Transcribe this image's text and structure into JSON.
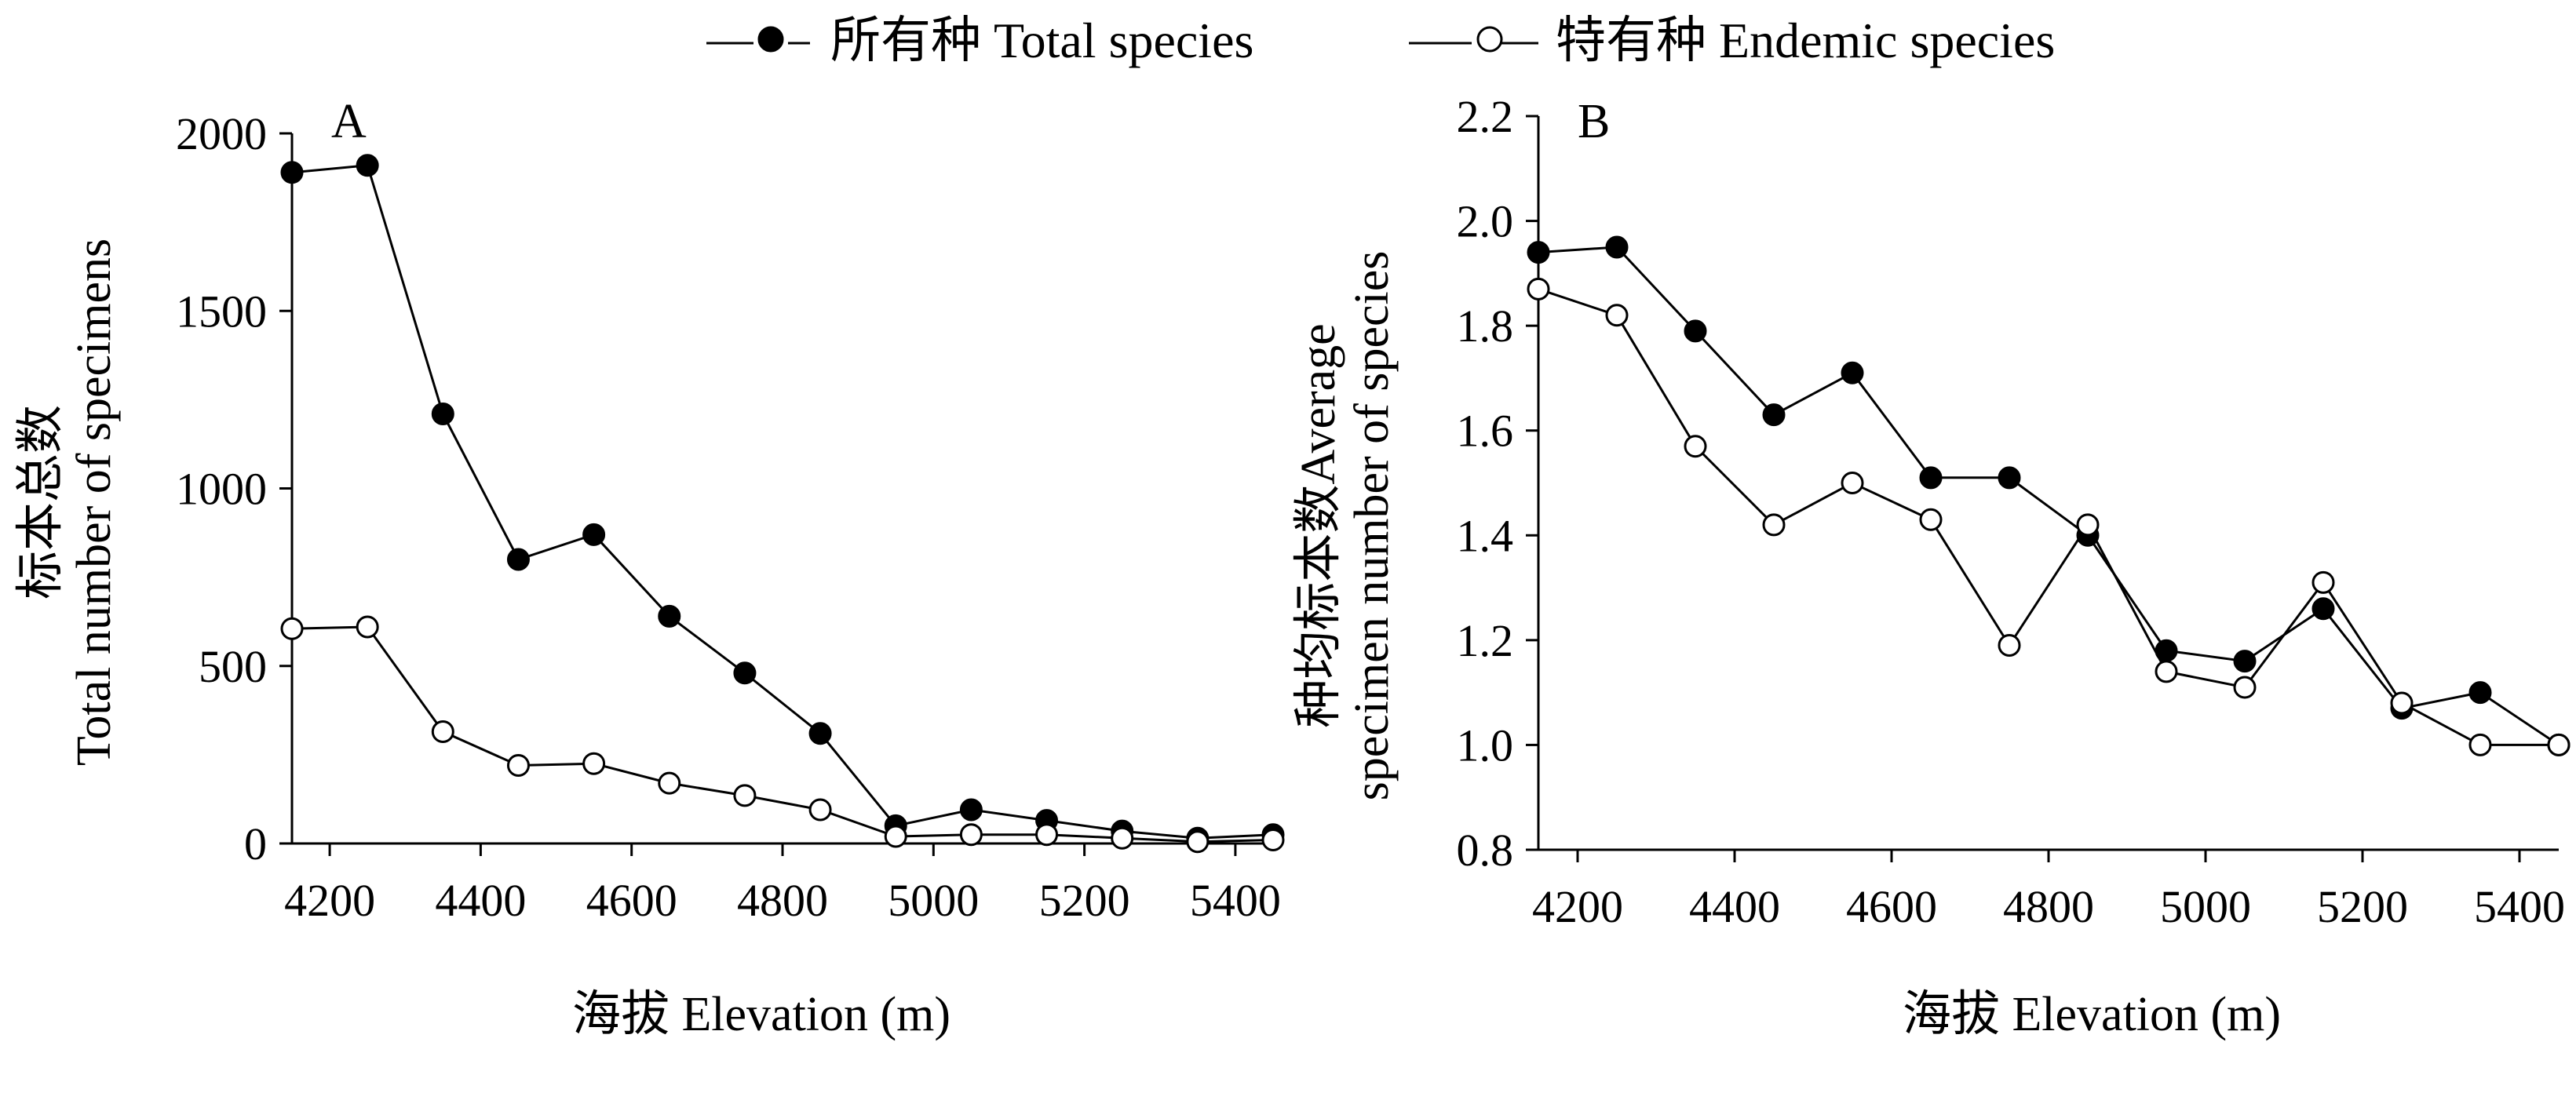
{
  "legend": {
    "total_label": "所有种 Total species",
    "endemic_label": "特有种 Endemic species"
  },
  "chart_data": [
    {
      "type": "line",
      "panel_label": "A",
      "xlabel": "海拔 Elevation (m)",
      "ylabel_line1": "标本总数",
      "ylabel_line2": "Total number of specimens",
      "xlim": [
        4150,
        5450
      ],
      "ylim": [
        0,
        2000
      ],
      "x_ticks": [
        4200,
        4400,
        4600,
        4800,
        5000,
        5200,
        5400
      ],
      "y_ticks": [
        0,
        500,
        1000,
        1500,
        2000
      ],
      "x": [
        4150,
        4250,
        4350,
        4450,
        4550,
        4650,
        4750,
        4850,
        4950,
        5050,
        5150,
        5250,
        5350,
        5450
      ],
      "series": [
        {
          "name": "所有种 Total species",
          "marker": "filled",
          "values": [
            1890,
            1910,
            1210,
            800,
            870,
            640,
            480,
            310,
            50,
            95,
            65,
            35,
            15,
            25
          ]
        },
        {
          "name": "特有种 Endemic species",
          "marker": "open",
          "values": [
            605,
            610,
            315,
            220,
            225,
            170,
            135,
            95,
            20,
            25,
            25,
            15,
            5,
            10
          ]
        }
      ]
    },
    {
      "type": "line",
      "panel_label": "B",
      "xlabel": "海拔 Elevation (m)",
      "ylabel_line1": "种均标本数Average",
      "ylabel_line2": "specimen number of species",
      "xlim": [
        4150,
        5450
      ],
      "ylim": [
        0.8,
        2.2
      ],
      "x_ticks": [
        4200,
        4400,
        4600,
        4800,
        5000,
        5200,
        5400
      ],
      "y_ticks": [
        0.8,
        1.0,
        1.2,
        1.4,
        1.6,
        1.8,
        2.0,
        2.2
      ],
      "x": [
        4150,
        4250,
        4350,
        4450,
        4550,
        4650,
        4750,
        4850,
        4950,
        5050,
        5150,
        5250,
        5350,
        5450
      ],
      "series": [
        {
          "name": "所有种 Total species",
          "marker": "filled",
          "values": [
            1.94,
            1.95,
            1.79,
            1.63,
            1.71,
            1.51,
            1.51,
            1.4,
            1.18,
            1.16,
            1.26,
            1.07,
            1.1,
            1.0
          ]
        },
        {
          "name": "特有种 Endemic species",
          "marker": "open",
          "values": [
            1.87,
            1.82,
            1.57,
            1.42,
            1.5,
            1.43,
            1.19,
            1.42,
            1.14,
            1.11,
            1.31,
            1.08,
            1.0,
            1.0
          ]
        }
      ]
    }
  ]
}
